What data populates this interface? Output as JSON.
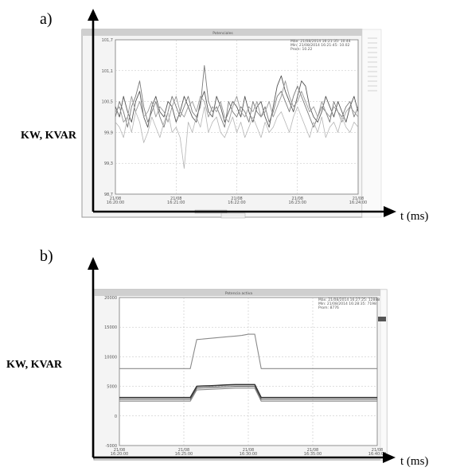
{
  "figure": {
    "panels": [
      {
        "label": "a)",
        "y_axis_label": "KW, KVAR",
        "x_axis_label": "t (ms)",
        "screen_title": "Potenciales",
        "legend_lines": [
          "Máx: 21/08/2014 16:21:35: 10.44",
          "Mín: 21/08/2014 16:21:45: 10.02",
          "Prom: 10.22"
        ],
        "y_ticks": [
          "101,7",
          "101,1",
          "100,5",
          "99,9",
          "99,3",
          "98,7"
        ],
        "x_ticks": [
          {
            "date": "21/08",
            "time": "16:20:00"
          },
          {
            "date": "21/08",
            "time": "16:21:00"
          },
          {
            "date": "21/08",
            "time": "16:22:00"
          },
          {
            "date": "21/08",
            "time": "16:23:00"
          },
          {
            "date": "21/08",
            "time": "16:24:00"
          }
        ]
      },
      {
        "label": "b)",
        "y_axis_label": "KW, KVAR",
        "x_axis_label": "t (ms)",
        "screen_title": "Potencia activa",
        "legend_lines": [
          "Máx: 21/08/2014 16:27:25: 12888",
          "Mín: 21/08/2014 16:28:35: 7198",
          "Prom: 8776"
        ],
        "y_ticks": [
          "20000",
          "15000",
          "10000",
          "5000",
          "0",
          "-5000"
        ],
        "x_ticks": [
          {
            "date": "21/08",
            "time": "16:20:00"
          },
          {
            "date": "21/08",
            "time": "16:25:00"
          },
          {
            "date": "21/08",
            "time": "16:30:00"
          },
          {
            "date": "21/08",
            "time": "16:35:00"
          },
          {
            "date": "21/08",
            "time": "16:40:00"
          }
        ]
      }
    ]
  },
  "chart_data": [
    {
      "type": "line",
      "xlabel": "t (ms)",
      "ylabel": "KW, KVAR",
      "x": [
        0,
        1,
        2,
        3,
        4,
        5,
        6,
        7,
        8,
        9,
        10,
        11,
        12,
        13,
        14,
        15,
        16,
        17,
        18,
        19,
        20,
        21,
        22,
        23,
        24,
        25,
        26,
        27,
        28,
        29,
        30,
        31,
        32,
        33,
        34,
        35,
        36,
        37,
        38,
        39,
        40,
        41,
        42,
        43,
        44,
        45,
        46,
        47,
        48,
        49,
        50,
        51,
        52,
        53,
        54,
        55,
        56,
        57,
        58,
        59,
        60
      ],
      "ylim": [
        98.7,
        101.7
      ],
      "grid": true,
      "series": [
        {
          "values": [
            100.4,
            100.2,
            100.6,
            100.3,
            100.1,
            100.5,
            100.7,
            100.2,
            100.0,
            100.4,
            100.6,
            100.3,
            100.2,
            100.5,
            100.4,
            100.1,
            100.3,
            100.6,
            100.4,
            100.2,
            100.1,
            100.5,
            100.7,
            100.3,
            100.2,
            100.6,
            100.4,
            100.1,
            100.3,
            100.5,
            100.4,
            100.2,
            100.6,
            100.3,
            100.1,
            100.4,
            100.5,
            100.2,
            100.0,
            100.4,
            100.8,
            101.0,
            100.7,
            100.5,
            100.3,
            100.6,
            100.9,
            100.8,
            100.4,
            100.2,
            100.1,
            100.3,
            100.6,
            100.4,
            100.2,
            100.5,
            100.3,
            100.1,
            100.4,
            100.6,
            100.3
          ]
        },
        {
          "values": [
            100.2,
            100.5,
            100.3,
            100.0,
            100.4,
            100.6,
            100.9,
            100.4,
            100.1,
            100.3,
            100.5,
            100.2,
            100.0,
            100.3,
            100.6,
            100.4,
            100.2,
            100.4,
            100.6,
            100.3,
            100.2,
            100.4,
            101.2,
            100.5,
            100.3,
            100.4,
            100.2,
            100.0,
            100.5,
            100.3,
            100.2,
            100.4,
            100.3,
            100.1,
            100.5,
            100.3,
            100.2,
            100.4,
            100.1,
            100.3,
            100.6,
            100.7,
            100.5,
            100.3,
            100.6,
            100.8,
            100.6,
            100.4,
            100.2,
            100.0,
            100.2,
            100.4,
            100.3,
            100.1,
            100.5,
            100.3,
            100.2,
            100.4,
            100.5,
            100.2,
            100.4
          ]
        },
        {
          "values": [
            100.3,
            100.4,
            100.1,
            100.2,
            100.6,
            100.3,
            100.5,
            100.2,
            100.3,
            100.5,
            100.2,
            100.4,
            100.3,
            100.1,
            100.4,
            100.6,
            100.3,
            100.2,
            100.4,
            100.5,
            100.3,
            100.6,
            100.5,
            100.2,
            100.4,
            100.3,
            100.5,
            100.2,
            100.1,
            100.4,
            100.6,
            100.3,
            100.2,
            100.4,
            100.3,
            100.5,
            100.2,
            100.3,
            100.5,
            100.2,
            100.4,
            100.6,
            100.9,
            100.6,
            100.4,
            100.5,
            100.7,
            100.5,
            100.3,
            100.4,
            100.2,
            100.5,
            100.3,
            100.2,
            100.4,
            100.3,
            100.1,
            100.3,
            100.4,
            100.3,
            100.2
          ]
        },
        {
          "values": [
            100.1,
            100.0,
            99.8,
            100.2,
            99.9,
            100.3,
            100.1,
            99.7,
            99.9,
            100.2,
            100.0,
            99.8,
            100.1,
            100.3,
            99.9,
            100.0,
            99.8,
            99.2,
            100.1,
            99.9,
            100.2,
            100.0,
            100.4,
            99.9,
            100.1,
            100.2,
            99.9,
            99.8,
            100.0,
            100.2,
            99.9,
            100.1,
            99.8,
            100.0,
            100.2,
            100.0,
            99.8,
            100.1,
            99.9,
            100.0,
            100.2,
            100.3,
            100.1,
            99.9,
            100.2,
            100.4,
            100.2,
            100.0,
            99.8,
            100.1,
            99.9,
            100.2,
            99.8,
            100.0,
            100.1,
            99.9,
            100.2,
            100.0,
            99.9,
            100.1,
            100.0
          ]
        }
      ]
    },
    {
      "type": "line",
      "xlabel": "t (ms)",
      "ylabel": "KW, KVAR",
      "x": [
        0,
        6,
        9,
        10,
        11,
        12,
        13,
        14,
        15,
        16,
        17,
        18,
        19,
        20,
        21,
        22,
        23,
        24,
        25,
        30,
        35,
        40
      ],
      "ylim": [
        -5000,
        20000
      ],
      "grid": true,
      "series": [
        {
          "values": [
            8000,
            8000,
            8000,
            8000,
            8000,
            12900,
            13000,
            13100,
            13200,
            13300,
            13400,
            13500,
            13600,
            13800,
            13800,
            8000,
            8000,
            8000,
            8000,
            8000,
            8000,
            8000
          ]
        },
        {
          "values": [
            3100,
            3100,
            3100,
            3100,
            3100,
            5000,
            5050,
            5100,
            5150,
            5200,
            5250,
            5300,
            5300,
            5300,
            5300,
            3100,
            3100,
            3100,
            3100,
            3100,
            3100,
            3100
          ]
        },
        {
          "values": [
            2800,
            2800,
            2800,
            2800,
            2800,
            4700,
            4750,
            4800,
            4850,
            4900,
            4950,
            5000,
            5000,
            5000,
            5000,
            2800,
            2800,
            2800,
            2800,
            2800,
            2800,
            2800
          ]
        },
        {
          "values": [
            2500,
            2500,
            2500,
            2500,
            2500,
            4400,
            4450,
            4500,
            4550,
            4600,
            4650,
            4700,
            4700,
            4700,
            4700,
            2500,
            2500,
            2500,
            2500,
            2500,
            2500,
            2500
          ]
        }
      ]
    }
  ]
}
